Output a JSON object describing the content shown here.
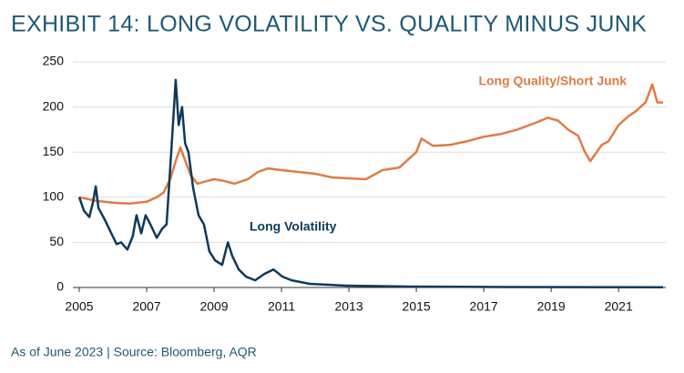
{
  "chart_data": {
    "type": "line",
    "title": "EXHIBIT 14: LONG VOLATILITY VS. QUALITY MINUS JUNK",
    "note": "As of June 2023 | Source: Bloomberg, AQR",
    "xlim": [
      2005,
      2022.4
    ],
    "xticks": [
      2005,
      2007,
      2009,
      2011,
      2013,
      2015,
      2017,
      2019,
      2021
    ],
    "ylim": [
      0,
      250
    ],
    "yticks": [
      0,
      50,
      100,
      150,
      200,
      250
    ],
    "grid": true,
    "series": [
      {
        "name": "Long Quality/Short Junk",
        "color": "#e07b45",
        "x": [
          2005,
          2005.5,
          2006,
          2006.5,
          2007,
          2007.3,
          2007.5,
          2007.7,
          2007.86,
          2008.0,
          2008.1,
          2008.3,
          2008.5,
          2008.8,
          2009.0,
          2009.3,
          2009.6,
          2010,
          2010.3,
          2010.6,
          2011,
          2011.5,
          2012,
          2012.5,
          2013,
          2013.5,
          2014,
          2014.5,
          2015,
          2015.15,
          2015.5,
          2016,
          2016.5,
          2017,
          2017.5,
          2018,
          2018.5,
          2018.9,
          2019.2,
          2019.5,
          2019.8,
          2020.0,
          2020.16,
          2020.5,
          2020.7,
          2021,
          2021.3,
          2021.5,
          2021.8,
          2022.0,
          2022.15,
          2022.32
        ],
        "values": [
          100,
          96,
          94,
          93,
          95,
          100,
          105,
          120,
          140,
          155,
          145,
          125,
          115,
          118,
          120,
          118,
          115,
          120,
          128,
          132,
          130,
          128,
          126,
          122,
          121,
          120,
          130,
          133,
          150,
          165,
          157,
          158,
          162,
          167,
          170,
          175,
          182,
          188,
          185,
          175,
          168,
          150,
          140,
          158,
          162,
          180,
          190,
          195,
          205,
          225,
          205,
          205
        ]
      },
      {
        "name": "Long Volatility",
        "color": "#0d3a5c",
        "x": [
          2005,
          2005.14,
          2005.3,
          2005.41,
          2005.49,
          2005.57,
          2005.76,
          2005.95,
          2006.11,
          2006.24,
          2006.43,
          2006.59,
          2006.7,
          2006.84,
          2006.97,
          2007.11,
          2007.3,
          2007.46,
          2007.59,
          2007.73,
          2007.86,
          2007.95,
          2008.05,
          2008.14,
          2008.24,
          2008.38,
          2008.54,
          2008.7,
          2008.86,
          2009.03,
          2009.24,
          2009.41,
          2009.54,
          2009.73,
          2009.95,
          2010.22,
          2010.49,
          2010.76,
          2011.03,
          2011.3,
          2011.84,
          2012.92,
          2014.81,
          2017.51,
          2022.32
        ],
        "values": [
          100,
          85,
          78,
          95,
          112,
          88,
          75,
          60,
          48,
          50,
          42,
          57,
          80,
          60,
          80,
          70,
          55,
          65,
          70,
          150,
          230,
          180,
          200,
          160,
          150,
          110,
          80,
          70,
          40,
          30,
          25,
          50,
          35,
          20,
          12,
          8,
          15,
          20,
          12,
          8,
          4,
          2,
          1,
          0.5,
          0.3
        ]
      }
    ]
  }
}
